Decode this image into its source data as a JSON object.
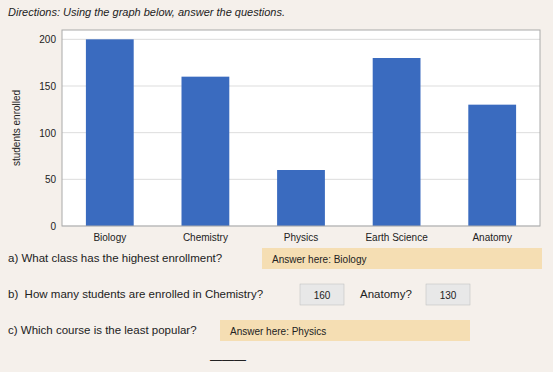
{
  "chart_data": {
    "type": "bar",
    "title": "Directions: Using the graph below, answer the questions.",
    "categories": [
      "Biology",
      "Chemistry",
      "Physics",
      "Earth Science",
      "Anatomy"
    ],
    "values": [
      200,
      160,
      60,
      180,
      130
    ],
    "color": "#3a6bbf",
    "ylabel": "students enrolled",
    "ylim": [
      0,
      210
    ],
    "yticks": [
      0,
      50,
      100,
      150,
      200
    ],
    "grid": true,
    "annotations": [
      "a) What class has the highest enrollment?",
      "Answer here: Biology",
      "b)  How many students are enrolled in Chemistry?",
      "160",
      "Anatomy?",
      "130",
      "c) Which course is the least popular?",
      "Answer here: Physics",
      "———"
    ]
  }
}
